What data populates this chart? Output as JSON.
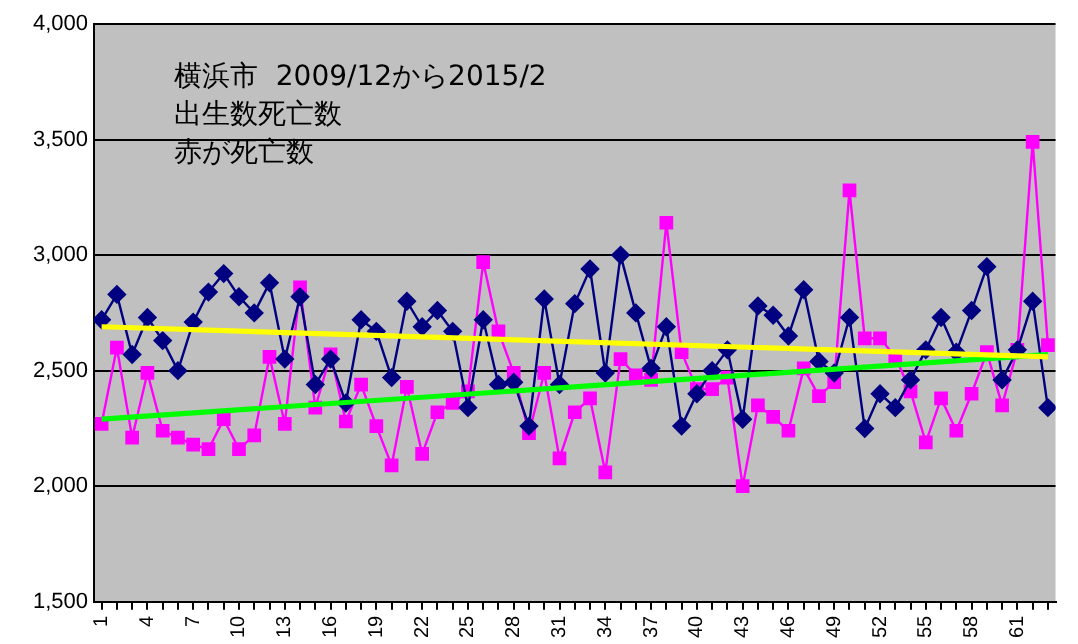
{
  "chart_data": {
    "type": "line",
    "annotations": [
      "横浜市  2009/12から2015/2",
      "出生数死亡数",
      "赤が死亡数"
    ],
    "x": [
      1,
      2,
      3,
      4,
      5,
      6,
      7,
      8,
      9,
      10,
      11,
      12,
      13,
      14,
      15,
      16,
      17,
      18,
      19,
      20,
      21,
      22,
      23,
      24,
      25,
      26,
      27,
      28,
      29,
      30,
      31,
      32,
      33,
      34,
      35,
      36,
      37,
      38,
      39,
      40,
      41,
      42,
      43,
      44,
      45,
      46,
      47,
      48,
      49,
      50,
      51,
      52,
      53,
      54,
      55,
      56,
      57,
      58,
      59,
      60,
      61,
      62,
      63
    ],
    "series": [
      {
        "type": "line",
        "color": "#000080",
        "marker": "diamond",
        "values": [
          2720,
          2830,
          2570,
          2730,
          2630,
          2500,
          2710,
          2840,
          2920,
          2820,
          2750,
          2880,
          2550,
          2820,
          2440,
          2550,
          2360,
          2720,
          2670,
          2470,
          2800,
          2690,
          2760,
          2670,
          2340,
          2720,
          2440,
          2450,
          2260,
          2810,
          2440,
          2790,
          2940,
          2490,
          3000,
          2750,
          2510,
          2690,
          2260,
          2400,
          2500,
          2590,
          2290,
          2780,
          2740,
          2650,
          2850,
          2540,
          2490,
          2730,
          2250,
          2400,
          2340,
          2460,
          2590,
          2730,
          2580,
          2760,
          2950,
          2460,
          2590,
          2800,
          2340
        ]
      },
      {
        "type": "line",
        "color": "#ff00ff",
        "marker": "square",
        "values": [
          2270,
          2600,
          2210,
          2490,
          2240,
          2210,
          2180,
          2160,
          2290,
          2160,
          2220,
          2560,
          2270,
          2860,
          2340,
          2570,
          2280,
          2440,
          2260,
          2090,
          2430,
          2140,
          2320,
          2360,
          2410,
          2970,
          2670,
          2490,
          2230,
          2490,
          2120,
          2320,
          2380,
          2060,
          2550,
          2480,
          2460,
          3140,
          2580,
          2420,
          2420,
          2470,
          2000,
          2350,
          2300,
          2240,
          2510,
          2390,
          2450,
          3280,
          2640,
          2640,
          2560,
          2410,
          2190,
          2380,
          2240,
          2400,
          2580,
          2350,
          2590,
          3490,
          2610
        ]
      },
      {
        "type": "line",
        "color": "#ffff00",
        "marker": "none",
        "values": [
          2690,
          null,
          null,
          null,
          null,
          null,
          null,
          null,
          null,
          null,
          null,
          null,
          null,
          null,
          null,
          null,
          null,
          null,
          null,
          null,
          null,
          null,
          null,
          null,
          null,
          null,
          null,
          null,
          null,
          null,
          null,
          null,
          null,
          null,
          null,
          null,
          null,
          null,
          null,
          null,
          null,
          null,
          null,
          null,
          null,
          null,
          null,
          null,
          null,
          null,
          null,
          null,
          null,
          null,
          null,
          null,
          null,
          null,
          null,
          null,
          null,
          null,
          2560
        ]
      },
      {
        "type": "line",
        "color": "#00ff00",
        "marker": "none",
        "values": [
          2290,
          null,
          null,
          null,
          null,
          null,
          null,
          null,
          null,
          null,
          null,
          null,
          null,
          null,
          null,
          null,
          null,
          null,
          null,
          null,
          null,
          null,
          null,
          null,
          null,
          null,
          null,
          null,
          null,
          null,
          null,
          null,
          null,
          null,
          null,
          null,
          null,
          null,
          null,
          null,
          null,
          null,
          null,
          null,
          null,
          null,
          null,
          null,
          null,
          null,
          null,
          null,
          null,
          null,
          null,
          null,
          null,
          null,
          null,
          null,
          null,
          null,
          2570
        ]
      }
    ],
    "xlim": [
      0.5,
      63.5
    ],
    "xticks": [
      1,
      {
        "value": 2,
        "label": null
      },
      {
        "value": 3,
        "label": null
      },
      4,
      {
        "value": 5,
        "label": null
      },
      {
        "value": 6,
        "label": null
      },
      7,
      {
        "value": 8,
        "label": null
      },
      {
        "value": 9,
        "label": null
      },
      10,
      {
        "value": 11,
        "label": null
      },
      {
        "value": 12,
        "label": null
      },
      13,
      {
        "value": 14,
        "label": null
      },
      {
        "value": 15,
        "label": null
      },
      16,
      {
        "value": 17,
        "label": null
      },
      {
        "value": 18,
        "label": null
      },
      19,
      {
        "value": 20,
        "label": null
      },
      {
        "value": 21,
        "label": null
      },
      22,
      {
        "value": 23,
        "label": null
      },
      {
        "value": 24,
        "label": null
      },
      25,
      {
        "value": 26,
        "label": null
      },
      {
        "value": 27,
        "label": null
      },
      28,
      {
        "value": 29,
        "label": null
      },
      {
        "value": 30,
        "label": null
      },
      31,
      {
        "value": 32,
        "label": null
      },
      {
        "value": 33,
        "label": null
      },
      34,
      {
        "value": 35,
        "label": null
      },
      {
        "value": 36,
        "label": null
      },
      37,
      {
        "value": 38,
        "label": null
      },
      {
        "value": 39,
        "label": null
      },
      40,
      {
        "value": 41,
        "label": null
      },
      {
        "value": 42,
        "label": null
      },
      43,
      {
        "value": 44,
        "label": null
      },
      {
        "value": 45,
        "label": null
      },
      46,
      {
        "value": 47,
        "label": null
      },
      {
        "value": 48,
        "label": null
      },
      49,
      {
        "value": 50,
        "label": null
      },
      {
        "value": 51,
        "label": null
      },
      52,
      {
        "value": 53,
        "label": null
      },
      {
        "value": 54,
        "label": null
      },
      55,
      {
        "value": 56,
        "label": null
      },
      {
        "value": 57,
        "label": null
      },
      58,
      {
        "value": 59,
        "label": null
      },
      {
        "value": 60,
        "label": null
      },
      61,
      {
        "value": 62,
        "label": null
      },
      {
        "value": 63,
        "label": null
      }
    ],
    "ylim": [
      1500,
      4000
    ],
    "yticks": [
      {
        "value": 1500,
        "label": "1,500"
      },
      {
        "value": 2000,
        "label": "2,000"
      },
      {
        "value": 2500,
        "label": "2,500"
      },
      {
        "value": 3000,
        "label": "3,000"
      },
      {
        "value": 3500,
        "label": "3,500"
      },
      {
        "value": 4000,
        "label": "4,000"
      }
    ],
    "grid": "y",
    "legend": false,
    "line_style": "solid"
  }
}
